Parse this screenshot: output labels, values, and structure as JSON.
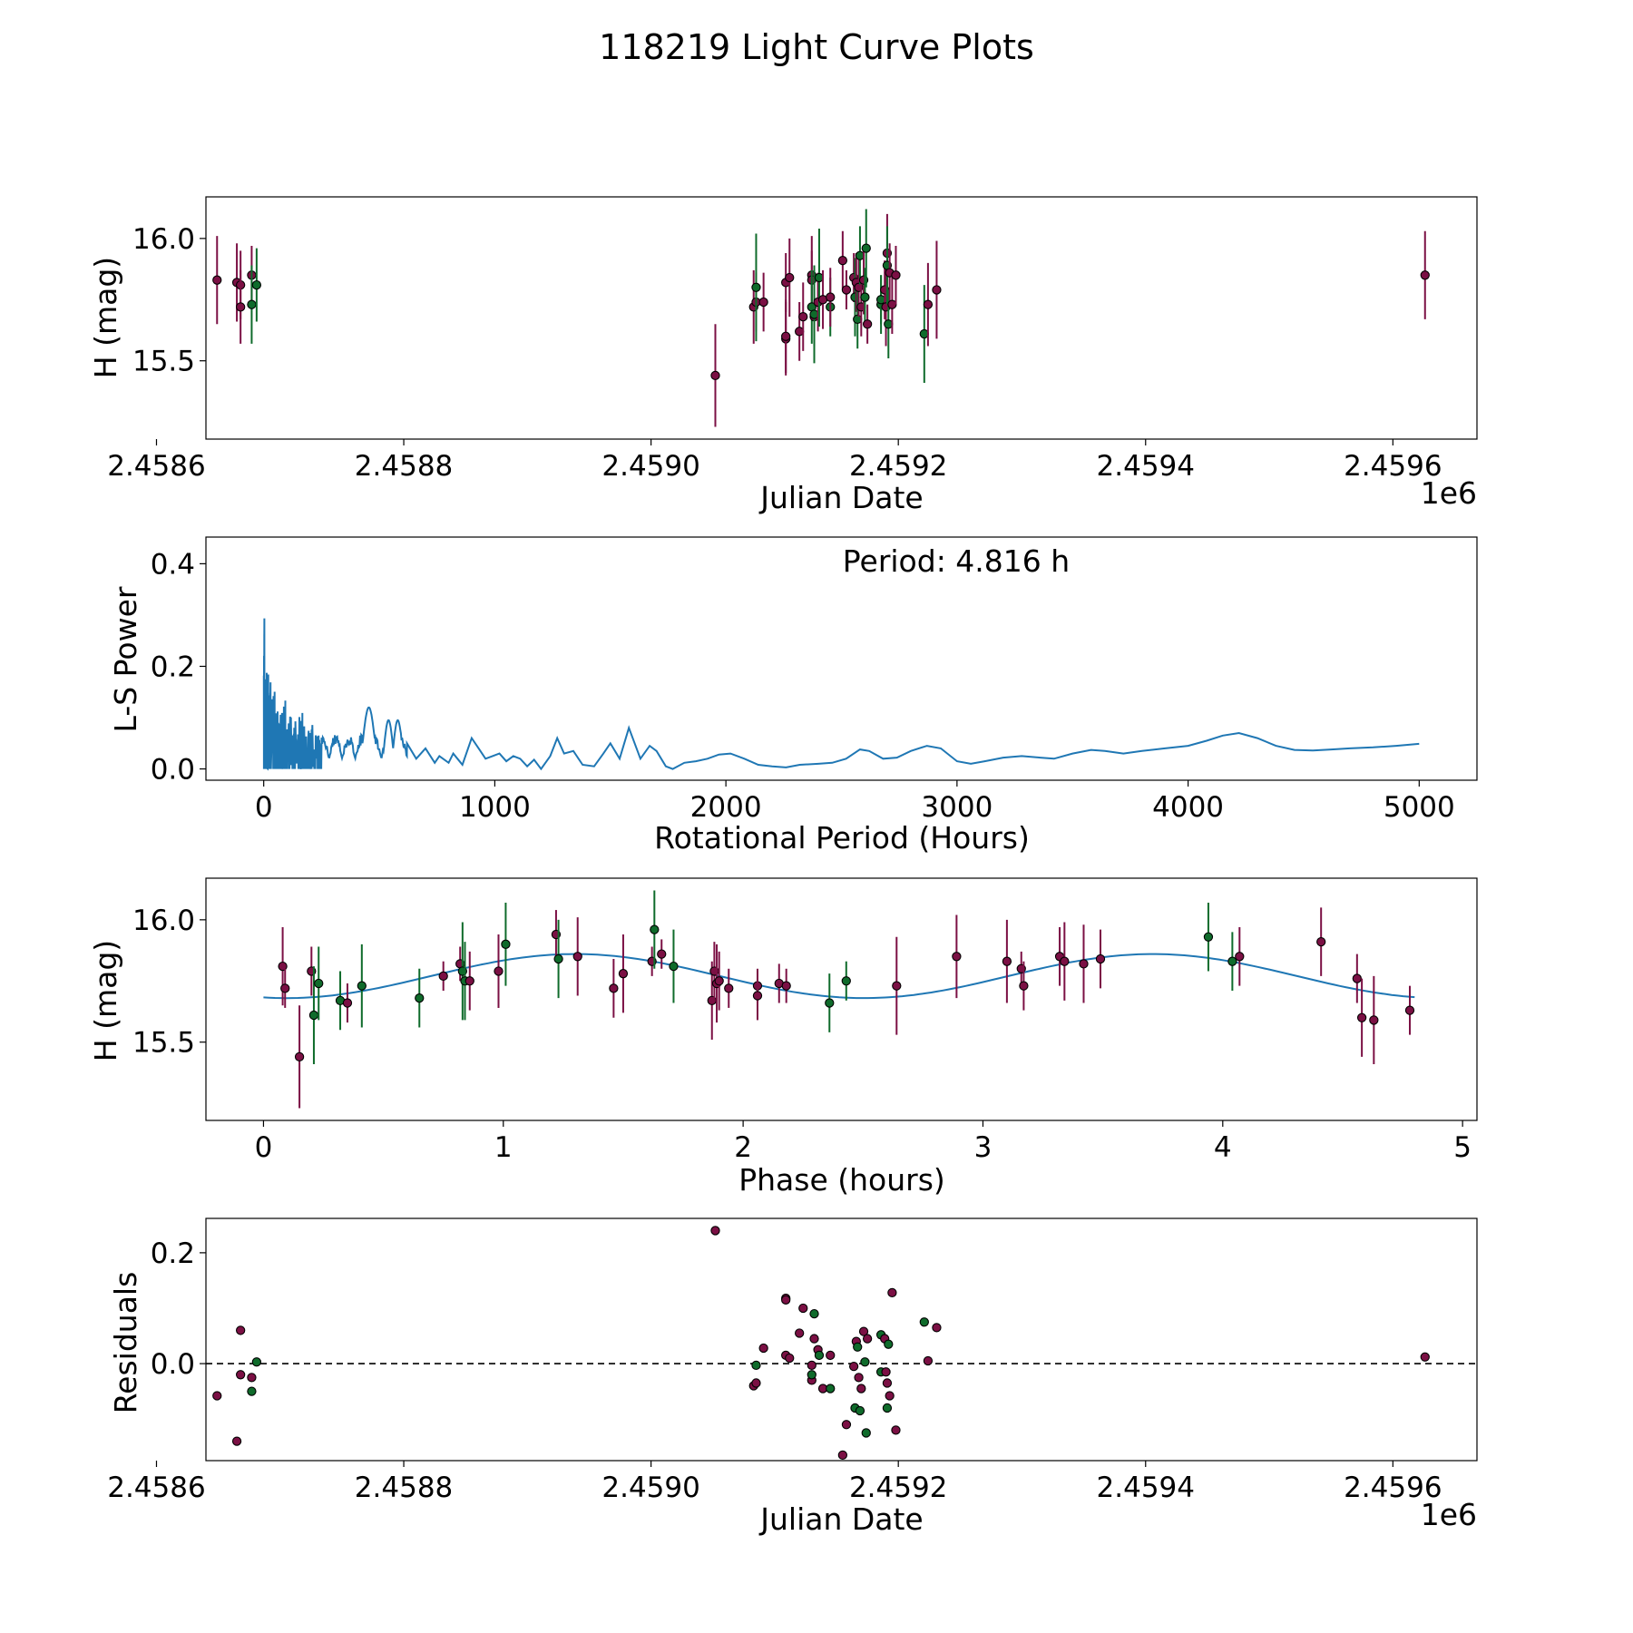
{
  "figure_title": "118219 Light Curve Plots",
  "colors": {
    "magenta": "#7b1044",
    "green": "#0f6b2b",
    "line": "#1f77b4",
    "edge": "#000000",
    "zero_line": "#000000"
  },
  "chart_data": [
    {
      "id": "lightcurve",
      "type": "scatter",
      "xlabel": "Julian Date",
      "ylabel": "H (mag)",
      "x_offset_label": "1e6",
      "xlim": [
        2.45864,
        2.459668
      ],
      "ylim": [
        15.18,
        16.17
      ],
      "xticks": [
        2.4586,
        2.4588,
        2.459,
        2.4592,
        2.4594,
        2.4596
      ],
      "xtick_labels": [
        "2.4586",
        "2.4588",
        "2.4590",
        "2.4592",
        "2.4594",
        "2.4596"
      ],
      "yticks": [
        15.5,
        16.0
      ],
      "ytick_labels": [
        "15.5",
        "16.0"
      ]
    },
    {
      "id": "periodogram",
      "type": "line",
      "xlabel": "Rotational Period (Hours)",
      "ylabel": "L-S Power",
      "xlim": [
        -250,
        5250
      ],
      "ylim": [
        -0.022,
        0.452
      ],
      "xticks": [
        0,
        1000,
        2000,
        3000,
        4000,
        5000
      ],
      "xtick_labels": [
        "0",
        "1000",
        "2000",
        "3000",
        "4000",
        "5000"
      ],
      "yticks": [
        0.0,
        0.2,
        0.4
      ],
      "ytick_labels": [
        "0.0",
        "0.2",
        "0.4"
      ],
      "annotation": "Period: 4.816 h",
      "smooth_points": [
        [
          620,
          0.05
        ],
        [
          660,
          0.02
        ],
        [
          700,
          0.04
        ],
        [
          740,
          0.012
        ],
        [
          760,
          0.025
        ],
        [
          800,
          0.012
        ],
        [
          820,
          0.03
        ],
        [
          860,
          0.008
        ],
        [
          900,
          0.06
        ],
        [
          930,
          0.04
        ],
        [
          960,
          0.02
        ],
        [
          990,
          0.025
        ],
        [
          1020,
          0.03
        ],
        [
          1050,
          0.015
        ],
        [
          1080,
          0.025
        ],
        [
          1110,
          0.02
        ],
        [
          1140,
          0.005
        ],
        [
          1170,
          0.018
        ],
        [
          1200,
          0.0
        ],
        [
          1240,
          0.025
        ],
        [
          1270,
          0.06
        ],
        [
          1300,
          0.03
        ],
        [
          1340,
          0.035
        ],
        [
          1380,
          0.008
        ],
        [
          1430,
          0.005
        ],
        [
          1470,
          0.03
        ],
        [
          1500,
          0.05
        ],
        [
          1540,
          0.02
        ],
        [
          1580,
          0.08
        ],
        [
          1630,
          0.02
        ],
        [
          1670,
          0.045
        ],
        [
          1700,
          0.035
        ],
        [
          1740,
          0.005
        ],
        [
          1770,
          0.0
        ],
        [
          1820,
          0.012
        ],
        [
          1870,
          0.015
        ],
        [
          1920,
          0.02
        ],
        [
          1970,
          0.028
        ],
        [
          2020,
          0.03
        ],
        [
          2080,
          0.02
        ],
        [
          2140,
          0.008
        ],
        [
          2200,
          0.005
        ],
        [
          2260,
          0.003
        ],
        [
          2320,
          0.008
        ],
        [
          2400,
          0.01
        ],
        [
          2460,
          0.012
        ],
        [
          2520,
          0.02
        ],
        [
          2580,
          0.038
        ],
        [
          2620,
          0.035
        ],
        [
          2680,
          0.02
        ],
        [
          2740,
          0.022
        ],
        [
          2800,
          0.035
        ],
        [
          2870,
          0.045
        ],
        [
          2930,
          0.04
        ],
        [
          3000,
          0.015
        ],
        [
          3060,
          0.01
        ],
        [
          3120,
          0.015
        ],
        [
          3200,
          0.022
        ],
        [
          3280,
          0.025
        ],
        [
          3360,
          0.022
        ],
        [
          3420,
          0.02
        ],
        [
          3500,
          0.03
        ],
        [
          3580,
          0.037
        ],
        [
          3640,
          0.035
        ],
        [
          3720,
          0.03
        ],
        [
          3800,
          0.035
        ],
        [
          3900,
          0.04
        ],
        [
          4000,
          0.045
        ],
        [
          4080,
          0.055
        ],
        [
          4150,
          0.065
        ],
        [
          4220,
          0.07
        ],
        [
          4300,
          0.06
        ],
        [
          4380,
          0.045
        ],
        [
          4460,
          0.037
        ],
        [
          4540,
          0.036
        ],
        [
          4620,
          0.038
        ],
        [
          4700,
          0.04
        ],
        [
          4800,
          0.042
        ],
        [
          4900,
          0.045
        ],
        [
          5000,
          0.049
        ]
      ]
    },
    {
      "id": "phased",
      "type": "scatter",
      "xlabel": "Phase (hours)",
      "ylabel": "H (mag)",
      "xlim": [
        -0.24,
        5.06
      ],
      "ylim": [
        15.18,
        16.17
      ],
      "xticks": [
        0,
        1,
        2,
        3,
        4,
        5
      ],
      "xtick_labels": [
        "0",
        "1",
        "2",
        "3",
        "4",
        "5"
      ],
      "yticks": [
        15.5,
        16.0
      ],
      "ytick_labels": [
        "15.5",
        "16.0"
      ],
      "model": {
        "mean": 15.77,
        "amplitude": 0.09,
        "period": 2.408,
        "phase_peak": 1.3,
        "x_end": 4.8
      },
      "points": [
        {
          "x": 0.08,
          "y": 15.81,
          "err": 0.16,
          "c": "m"
        },
        {
          "x": 0.09,
          "y": 15.72,
          "err": 0.08,
          "c": "m"
        },
        {
          "x": 0.15,
          "y": 15.44,
          "err": 0.21,
          "c": "m"
        },
        {
          "x": 0.2,
          "y": 15.79,
          "err": 0.1,
          "c": "m"
        },
        {
          "x": 0.21,
          "y": 15.61,
          "err": 0.2,
          "c": "g"
        },
        {
          "x": 0.23,
          "y": 15.74,
          "err": 0.15,
          "c": "g"
        },
        {
          "x": 0.32,
          "y": 15.67,
          "err": 0.12,
          "c": "g"
        },
        {
          "x": 0.35,
          "y": 15.66,
          "err": 0.08,
          "c": "m"
        },
        {
          "x": 0.41,
          "y": 15.73,
          "err": 0.17,
          "c": "g"
        },
        {
          "x": 0.65,
          "y": 15.68,
          "err": 0.12,
          "c": "g"
        },
        {
          "x": 0.75,
          "y": 15.77,
          "err": 0.06,
          "c": "m"
        },
        {
          "x": 0.82,
          "y": 15.82,
          "err": 0.07,
          "c": "m"
        },
        {
          "x": 0.83,
          "y": 15.79,
          "err": 0.2,
          "c": "g"
        },
        {
          "x": 0.84,
          "y": 15.75,
          "err": 0.16,
          "c": "g"
        },
        {
          "x": 0.86,
          "y": 15.75,
          "err": 0.12,
          "c": "m"
        },
        {
          "x": 0.98,
          "y": 15.79,
          "err": 0.15,
          "c": "m"
        },
        {
          "x": 1.01,
          "y": 15.9,
          "err": 0.17,
          "c": "g"
        },
        {
          "x": 1.22,
          "y": 15.94,
          "err": 0.1,
          "c": "m"
        },
        {
          "x": 1.23,
          "y": 15.84,
          "err": 0.16,
          "c": "g"
        },
        {
          "x": 1.31,
          "y": 15.85,
          "err": 0.16,
          "c": "m"
        },
        {
          "x": 1.46,
          "y": 15.72,
          "err": 0.12,
          "c": "m"
        },
        {
          "x": 1.5,
          "y": 15.78,
          "err": 0.16,
          "c": "m"
        },
        {
          "x": 1.62,
          "y": 15.83,
          "err": 0.06,
          "c": "m"
        },
        {
          "x": 1.63,
          "y": 15.96,
          "err": 0.16,
          "c": "g"
        },
        {
          "x": 1.66,
          "y": 15.86,
          "err": 0.06,
          "c": "m"
        },
        {
          "x": 1.71,
          "y": 15.81,
          "err": 0.15,
          "c": "g"
        },
        {
          "x": 1.87,
          "y": 15.67,
          "err": 0.16,
          "c": "m"
        },
        {
          "x": 1.88,
          "y": 15.79,
          "err": 0.12,
          "c": "m"
        },
        {
          "x": 1.89,
          "y": 15.74,
          "err": 0.16,
          "c": "m"
        },
        {
          "x": 1.9,
          "y": 15.75,
          "err": 0.12,
          "c": "m"
        },
        {
          "x": 1.94,
          "y": 15.72,
          "err": 0.08,
          "c": "m"
        },
        {
          "x": 2.06,
          "y": 15.73,
          "err": 0.07,
          "c": "m"
        },
        {
          "x": 2.06,
          "y": 15.69,
          "err": 0.1,
          "c": "m"
        },
        {
          "x": 2.15,
          "y": 15.74,
          "err": 0.08,
          "c": "m"
        },
        {
          "x": 2.18,
          "y": 15.73,
          "err": 0.07,
          "c": "m"
        },
        {
          "x": 2.36,
          "y": 15.66,
          "err": 0.12,
          "c": "g"
        },
        {
          "x": 2.43,
          "y": 15.75,
          "err": 0.08,
          "c": "g"
        },
        {
          "x": 2.64,
          "y": 15.73,
          "err": 0.2,
          "c": "m"
        },
        {
          "x": 2.89,
          "y": 15.85,
          "err": 0.17,
          "c": "m"
        },
        {
          "x": 3.1,
          "y": 15.83,
          "err": 0.17,
          "c": "m"
        },
        {
          "x": 3.16,
          "y": 15.8,
          "err": 0.07,
          "c": "m"
        },
        {
          "x": 3.17,
          "y": 15.73,
          "err": 0.1,
          "c": "m"
        },
        {
          "x": 3.32,
          "y": 15.85,
          "err": 0.12,
          "c": "m"
        },
        {
          "x": 3.34,
          "y": 15.83,
          "err": 0.16,
          "c": "m"
        },
        {
          "x": 3.42,
          "y": 15.82,
          "err": 0.16,
          "c": "m"
        },
        {
          "x": 3.49,
          "y": 15.84,
          "err": 0.12,
          "c": "m"
        },
        {
          "x": 3.94,
          "y": 15.93,
          "err": 0.14,
          "c": "g"
        },
        {
          "x": 4.04,
          "y": 15.83,
          "err": 0.12,
          "c": "g"
        },
        {
          "x": 4.07,
          "y": 15.85,
          "err": 0.12,
          "c": "m"
        },
        {
          "x": 4.41,
          "y": 15.91,
          "err": 0.14,
          "c": "m"
        },
        {
          "x": 4.56,
          "y": 15.76,
          "err": 0.1,
          "c": "m"
        },
        {
          "x": 4.58,
          "y": 15.6,
          "err": 0.16,
          "c": "m"
        },
        {
          "x": 4.63,
          "y": 15.59,
          "err": 0.18,
          "c": "m"
        },
        {
          "x": 4.78,
          "y": 15.63,
          "err": 0.1,
          "c": "m"
        }
      ]
    },
    {
      "id": "residuals",
      "type": "scatter",
      "xlabel": "Julian Date",
      "ylabel": "Residuals",
      "x_offset_label": "1e6",
      "xlim": [
        2.45864,
        2.459668
      ],
      "ylim": [
        -0.175,
        0.262
      ],
      "xticks": [
        2.4586,
        2.4588,
        2.459,
        2.4592,
        2.4594,
        2.4596
      ],
      "xtick_labels": [
        "2.4586",
        "2.4588",
        "2.4590",
        "2.4592",
        "2.4594",
        "2.4596"
      ],
      "yticks": [
        0.0,
        0.2
      ],
      "ytick_labels": [
        "0.0",
        "0.2"
      ]
    }
  ],
  "observations": [
    {
      "jd": 2.458649,
      "H": 15.83,
      "err": 0.18,
      "res": -0.058,
      "c": "m"
    },
    {
      "jd": 2.458665,
      "H": 15.82,
      "err": 0.16,
      "res": -0.14,
      "c": "m"
    },
    {
      "jd": 2.458668,
      "H": 15.81,
      "err": 0.14,
      "res": -0.02,
      "c": "m"
    },
    {
      "jd": 2.458668,
      "H": 15.72,
      "err": 0.15,
      "res": 0.06,
      "c": "m"
    },
    {
      "jd": 2.458677,
      "H": 15.85,
      "err": 0.12,
      "res": -0.025,
      "c": "m"
    },
    {
      "jd": 2.458677,
      "H": 15.73,
      "err": 0.16,
      "res": -0.05,
      "c": "g"
    },
    {
      "jd": 2.458681,
      "H": 15.81,
      "err": 0.15,
      "res": 0.003,
      "c": "g"
    },
    {
      "jd": 2.459052,
      "H": 15.44,
      "err": 0.21,
      "res": 0.24,
      "c": "m"
    },
    {
      "jd": 2.459083,
      "H": 15.72,
      "err": 0.15,
      "res": -0.04,
      "c": "m"
    },
    {
      "jd": 2.459085,
      "H": 15.74,
      "err": 0.12,
      "res": -0.035,
      "c": "m"
    },
    {
      "jd": 2.459085,
      "H": 15.8,
      "err": 0.22,
      "res": -0.003,
      "c": "g"
    },
    {
      "jd": 2.459091,
      "H": 15.74,
      "err": 0.12,
      "res": 0.028,
      "c": "m"
    },
    {
      "jd": 2.459109,
      "H": 15.59,
      "err": 0.15,
      "res": 0.118,
      "c": "m"
    },
    {
      "jd": 2.459109,
      "H": 15.6,
      "err": 0.15,
      "res": 0.115,
      "c": "m"
    },
    {
      "jd": 2.459109,
      "H": 15.82,
      "err": 0.12,
      "res": 0.015,
      "c": "m"
    },
    {
      "jd": 2.459112,
      "H": 15.84,
      "err": 0.16,
      "res": 0.01,
      "c": "m"
    },
    {
      "jd": 2.45912,
      "H": 15.62,
      "err": 0.12,
      "res": 0.055,
      "c": "m"
    },
    {
      "jd": 2.459123,
      "H": 15.68,
      "err": 0.14,
      "res": 0.1,
      "c": "m"
    },
    {
      "jd": 2.45913,
      "H": 15.85,
      "err": 0.16,
      "res": -0.03,
      "c": "m"
    },
    {
      "jd": 2.45913,
      "H": 15.83,
      "err": 0.12,
      "res": -0.003,
      "c": "m"
    },
    {
      "jd": 2.45913,
      "H": 15.72,
      "err": 0.15,
      "res": -0.02,
      "c": "g"
    },
    {
      "jd": 2.459132,
      "H": 15.68,
      "err": 0.12,
      "res": 0.045,
      "c": "m"
    },
    {
      "jd": 2.459132,
      "H": 15.69,
      "err": 0.2,
      "res": 0.09,
      "c": "g"
    },
    {
      "jd": 2.459135,
      "H": 15.74,
      "err": 0.12,
      "res": 0.025,
      "c": "m"
    },
    {
      "jd": 2.459136,
      "H": 15.84,
      "err": 0.2,
      "res": 0.015,
      "c": "g"
    },
    {
      "jd": 2.459139,
      "H": 15.75,
      "err": 0.12,
      "res": -0.045,
      "c": "m"
    },
    {
      "jd": 2.459145,
      "H": 15.72,
      "err": 0.12,
      "res": -0.045,
      "c": "g"
    },
    {
      "jd": 2.459145,
      "H": 15.76,
      "err": 0.12,
      "res": 0.015,
      "c": "m"
    },
    {
      "jd": 2.459155,
      "H": 15.91,
      "err": 0.12,
      "res": -0.165,
      "c": "m"
    },
    {
      "jd": 2.459158,
      "H": 15.79,
      "err": 0.08,
      "res": -0.11,
      "c": "m"
    },
    {
      "jd": 2.459164,
      "H": 15.84,
      "err": 0.1,
      "res": -0.005,
      "c": "m"
    },
    {
      "jd": 2.459165,
      "H": 15.76,
      "err": 0.16,
      "res": -0.08,
      "c": "g"
    },
    {
      "jd": 2.459166,
      "H": 15.82,
      "err": 0.12,
      "res": 0.04,
      "c": "m"
    },
    {
      "jd": 2.459167,
      "H": 15.67,
      "err": 0.12,
      "res": 0.03,
      "c": "g"
    },
    {
      "jd": 2.459168,
      "H": 15.8,
      "err": 0.12,
      "res": -0.025,
      "c": "m"
    },
    {
      "jd": 2.459169,
      "H": 15.93,
      "err": 0.12,
      "res": -0.085,
      "c": "g"
    },
    {
      "jd": 2.45917,
      "H": 15.72,
      "err": 0.12,
      "res": -0.045,
      "c": "m"
    },
    {
      "jd": 2.459172,
      "H": 15.83,
      "err": 0.14,
      "res": 0.058,
      "c": "m"
    },
    {
      "jd": 2.459173,
      "H": 15.76,
      "err": 0.12,
      "res": 0.003,
      "c": "g"
    },
    {
      "jd": 2.459174,
      "H": 15.96,
      "err": 0.16,
      "res": -0.125,
      "c": "g"
    },
    {
      "jd": 2.459175,
      "H": 15.65,
      "err": 0.08,
      "res": 0.045,
      "c": "m"
    },
    {
      "jd": 2.459186,
      "H": 15.73,
      "err": 0.12,
      "res": 0.052,
      "c": "g"
    },
    {
      "jd": 2.459186,
      "H": 15.75,
      "err": 0.1,
      "res": -0.015,
      "c": "g"
    },
    {
      "jd": 2.459189,
      "H": 15.79,
      "err": 0.12,
      "res": 0.045,
      "c": "m"
    },
    {
      "jd": 2.45919,
      "H": 15.72,
      "err": 0.16,
      "res": -0.015,
      "c": "m"
    },
    {
      "jd": 2.459191,
      "H": 15.94,
      "err": 0.16,
      "res": -0.035,
      "c": "m"
    },
    {
      "jd": 2.459191,
      "H": 15.89,
      "err": 0.16,
      "res": -0.08,
      "c": "g"
    },
    {
      "jd": 2.459192,
      "H": 15.65,
      "err": 0.14,
      "res": 0.035,
      "c": "g"
    },
    {
      "jd": 2.459193,
      "H": 15.86,
      "err": 0.12,
      "res": -0.058,
      "c": "m"
    },
    {
      "jd": 2.459195,
      "H": 15.73,
      "err": 0.12,
      "res": 0.128,
      "c": "m"
    },
    {
      "jd": 2.459198,
      "H": 15.85,
      "err": 0.12,
      "res": -0.12,
      "c": "m"
    },
    {
      "jd": 2.459221,
      "H": 15.61,
      "err": 0.2,
      "res": 0.075,
      "c": "g"
    },
    {
      "jd": 2.459224,
      "H": 15.73,
      "err": 0.17,
      "res": 0.005,
      "c": "m"
    },
    {
      "jd": 2.459231,
      "H": 15.79,
      "err": 0.2,
      "res": 0.065,
      "c": "m"
    },
    {
      "jd": 2.459626,
      "H": 15.85,
      "err": 0.18,
      "res": 0.012,
      "c": "m"
    }
  ]
}
